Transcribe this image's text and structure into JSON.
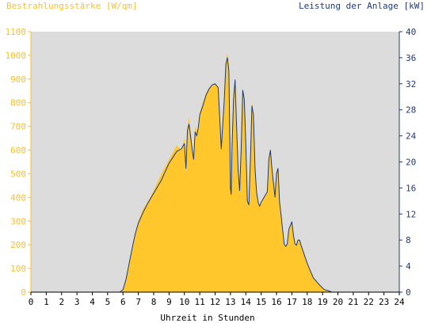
{
  "chart_data": {
    "type": "area",
    "title_left": "Bestrahlungsstärke [W/qm]",
    "title_right": "Leistung der Anlage [kW]",
    "xlabel": "Uhrzeit in Stunden",
    "x_ticks": [
      "0",
      "1",
      "2",
      "3",
      "4",
      "5",
      "6",
      "7",
      "8",
      "9",
      "10",
      "11",
      "12",
      "13",
      "14",
      "15",
      "16",
      "17",
      "18",
      "19",
      "20",
      "21",
      "22",
      "23",
      "24"
    ],
    "y_left_ticks": [
      "0",
      "100",
      "200",
      "300",
      "400",
      "500",
      "600",
      "700",
      "800",
      "900",
      "1000",
      "1100"
    ],
    "y_right_ticks": [
      "0",
      "4",
      "8",
      "12",
      "16",
      "20",
      "24",
      "28",
      "32",
      "36",
      "40"
    ],
    "ylim_left": [
      0,
      1100
    ],
    "ylim_right": [
      0,
      40
    ],
    "xlim": [
      0,
      24
    ],
    "grid": false,
    "series": [
      {
        "axis": "left",
        "style": "filled-area",
        "color": "#ffc72c",
        "x": [
          0,
          5.8,
          6.0,
          6.2,
          6.4,
          6.6,
          6.8,
          7.0,
          7.3,
          7.6,
          8.0,
          8.5,
          9.0,
          9.5,
          9.8,
          10.0,
          10.1,
          10.2,
          10.3,
          10.4,
          10.5,
          10.6,
          10.7,
          10.8,
          10.9,
          11.0,
          11.2,
          11.4,
          11.6,
          11.8,
          12.0,
          12.2,
          12.4,
          12.6,
          12.7,
          12.8,
          12.9,
          13.0,
          13.05,
          13.1,
          13.2,
          13.3,
          13.4,
          13.5,
          13.6,
          13.7,
          13.8,
          13.9,
          14.0,
          14.1,
          14.2,
          14.3,
          14.4,
          14.5,
          14.6,
          14.7,
          14.8,
          14.9,
          15.0,
          15.2,
          15.4,
          15.5,
          15.6,
          15.7,
          15.8,
          15.9,
          16.0,
          16.1,
          16.2,
          16.3,
          16.4,
          16.5,
          16.6,
          16.7,
          16.8,
          16.9,
          17.0,
          17.1,
          17.2,
          17.3,
          17.4,
          17.5,
          17.6,
          17.8,
          18.0,
          18.4,
          18.8,
          19.1,
          19.4,
          19.6,
          24
        ],
        "values": [
          0,
          0,
          10,
          50,
          120,
          190,
          250,
          300,
          350,
          380,
          430,
          500,
          560,
          620,
          600,
          650,
          500,
          700,
          740,
          680,
          620,
          560,
          700,
          680,
          700,
          760,
          800,
          840,
          860,
          870,
          880,
          860,
          600,
          820,
          970,
          1010,
          960,
          450,
          400,
          600,
          820,
          900,
          700,
          500,
          420,
          600,
          860,
          820,
          620,
          380,
          360,
          560,
          800,
          760,
          520,
          420,
          380,
          360,
          380,
          400,
          420,
          560,
          600,
          520,
          460,
          400,
          500,
          520,
          380,
          320,
          260,
          200,
          190,
          200,
          260,
          280,
          300,
          240,
          200,
          200,
          220,
          220,
          200,
          160,
          120,
          60,
          30,
          10,
          5,
          0,
          0
        ]
      },
      {
        "axis": "right",
        "style": "line",
        "color": "#1f3a7a",
        "x": [
          0,
          5.8,
          6.0,
          6.2,
          6.4,
          6.6,
          6.8,
          7.0,
          7.3,
          7.6,
          8.0,
          8.5,
          9.0,
          9.5,
          9.8,
          10.0,
          10.1,
          10.2,
          10.3,
          10.4,
          10.5,
          10.6,
          10.7,
          10.8,
          10.9,
          11.0,
          11.2,
          11.4,
          11.6,
          11.8,
          12.0,
          12.2,
          12.4,
          12.6,
          12.7,
          12.8,
          12.9,
          13.0,
          13.05,
          13.1,
          13.2,
          13.3,
          13.4,
          13.5,
          13.6,
          13.7,
          13.8,
          13.9,
          14.0,
          14.1,
          14.2,
          14.3,
          14.4,
          14.5,
          14.6,
          14.7,
          14.8,
          14.9,
          15.0,
          15.2,
          15.4,
          15.5,
          15.6,
          15.7,
          15.8,
          15.9,
          16.0,
          16.1,
          16.2,
          16.3,
          16.4,
          16.5,
          16.6,
          16.7,
          16.8,
          16.9,
          17.0,
          17.1,
          17.2,
          17.3,
          17.4,
          17.5,
          17.6,
          17.8,
          18.0,
          18.4,
          18.8,
          19.1,
          19.4,
          19.6,
          24
        ],
        "values": [
          0,
          0,
          0.4,
          2,
          4.4,
          6.8,
          9,
          10.6,
          12.2,
          13.6,
          15.2,
          17.2,
          19.8,
          21.6,
          22,
          22.8,
          19,
          24.8,
          25.8,
          24,
          22,
          20.4,
          24.6,
          24,
          25.2,
          27.2,
          28.6,
          30.2,
          31.2,
          31.8,
          32,
          31.4,
          22,
          29.6,
          35,
          36,
          34,
          16,
          15,
          22,
          29.6,
          32.6,
          25.6,
          18.6,
          15.6,
          22,
          31,
          29.6,
          22.6,
          14,
          13.4,
          20.4,
          28.6,
          27.2,
          19,
          15.4,
          13.8,
          13.2,
          13.8,
          14.6,
          15.4,
          20.4,
          21.8,
          19,
          16.8,
          14.6,
          18.2,
          19,
          13.8,
          11.8,
          9.6,
          7.4,
          7,
          7.4,
          9.6,
          10.2,
          10.8,
          8.8,
          7.4,
          7.2,
          8,
          8,
          7.2,
          5.8,
          4.4,
          2.2,
          1.1,
          0.4,
          0.2,
          0,
          0
        ]
      }
    ]
  }
}
